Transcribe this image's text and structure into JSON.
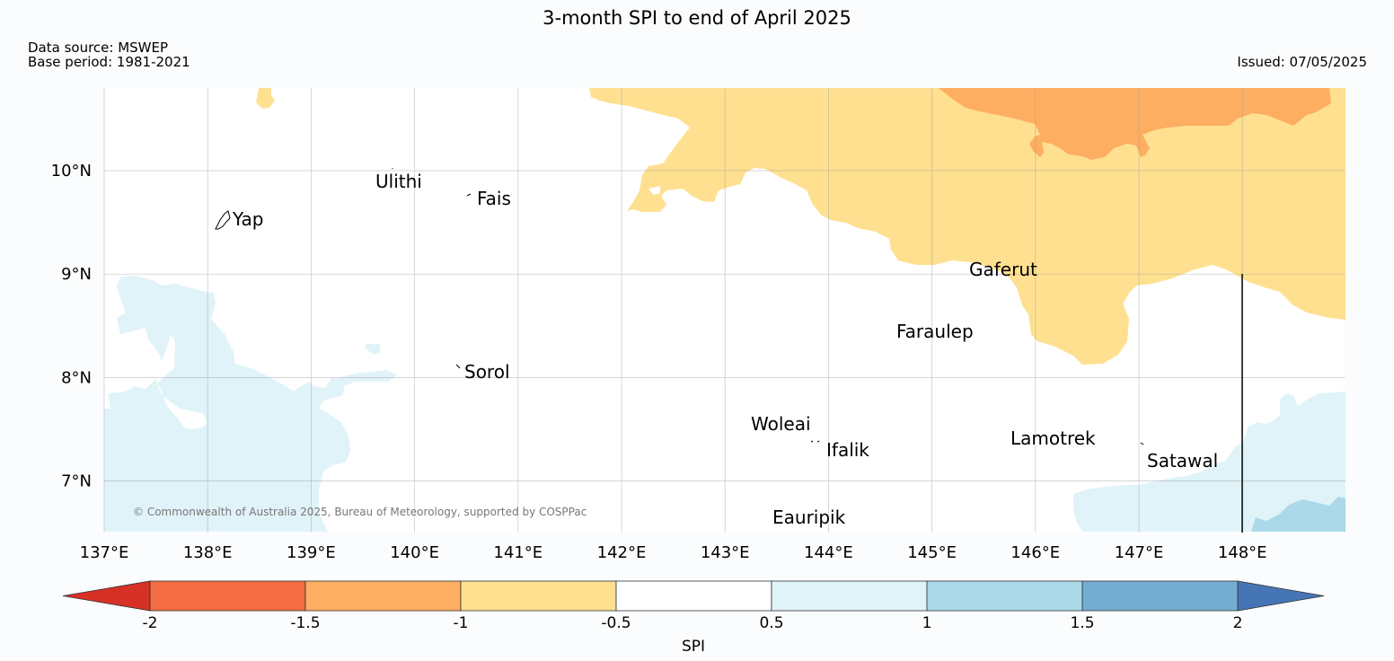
{
  "title": "3-month SPI to end of April 2025",
  "data_source": "Data source: MSWEP",
  "base_period": "Base period: 1981-2021",
  "issued": "Issued: 07/05/2025",
  "copyright": "© Commonwealth of Australia 2025, Bureau of Meteorology, supported by COSPPac",
  "lat_labels": [
    "10°N",
    "9°N",
    "8°N",
    "7°N"
  ],
  "lon_labels": [
    "137°E",
    "138°E",
    "139°E",
    "140°E",
    "141°E",
    "142°E",
    "143°E",
    "144°E",
    "145°E",
    "146°E",
    "147°E",
    "148°E"
  ],
  "places": [
    "Yap",
    "Ulithi",
    "Fais",
    "Sorol",
    "Gaferut",
    "Faraulep",
    "Woleai",
    "Ifalik",
    "Lamotrek",
    "Satawal",
    "Eauripik"
  ],
  "colorbar": {
    "label": "SPI",
    "ticks": [
      "-2",
      "-1.5",
      "-1",
      "-0.5",
      "0.5",
      "1",
      "1.5",
      "2"
    ],
    "colors": [
      "#d73027",
      "#f46d43",
      "#fdae61",
      "#fee090",
      "#ffffff",
      "#e0f3f8",
      "#abd9e9",
      "#74add1",
      "#4575b4"
    ]
  }
}
